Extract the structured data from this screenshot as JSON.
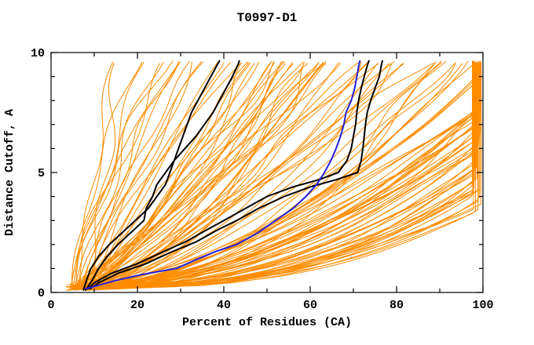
{
  "window": {
    "background": "#ffffff"
  },
  "chart_data": {
    "type": "line",
    "title": "T0997-D1",
    "xlabel": "Percent of Residues (CA)",
    "ylabel": "Distance Cutoff, A",
    "xlim": [
      0,
      100
    ],
    "ylim": [
      0,
      10
    ],
    "x_major_ticks": [
      0,
      20,
      40,
      60,
      80,
      100
    ],
    "x_minor_step": 10,
    "y_major_ticks": [
      0,
      5,
      10
    ],
    "y_minor_step": 1,
    "grid": false,
    "legend": "none",
    "colors": {
      "ensemble": "#ff8c00",
      "highlight": "#000000",
      "reference": "#2222dd",
      "frame": "#000000"
    },
    "series": [
      {
        "name": "black-model-left-1",
        "color": "#000000",
        "width": 2,
        "points_pct_cutoff": [
          [
            7.5,
            0.1
          ],
          [
            8.2,
            0.5
          ],
          [
            9.2,
            1.0
          ],
          [
            11,
            1.5
          ],
          [
            13.5,
            2.0
          ],
          [
            16.5,
            2.5
          ],
          [
            19.5,
            3.0
          ],
          [
            22.5,
            3.5
          ],
          [
            24.5,
            4.0
          ],
          [
            26.5,
            4.5
          ],
          [
            27.5,
            5.0
          ],
          [
            28.5,
            5.5
          ],
          [
            29.5,
            6.0
          ],
          [
            30.5,
            6.5
          ],
          [
            31.5,
            7.0
          ],
          [
            32.5,
            7.5
          ],
          [
            34,
            8.0
          ],
          [
            35.5,
            8.5
          ],
          [
            37,
            9.0
          ],
          [
            38.5,
            9.5
          ],
          [
            39,
            9.65
          ]
        ]
      },
      {
        "name": "black-model-left-2",
        "color": "#000000",
        "width": 2,
        "points_pct_cutoff": [
          [
            8,
            0.1
          ],
          [
            9.5,
            0.5
          ],
          [
            11,
            1.0
          ],
          [
            13,
            1.5
          ],
          [
            15.5,
            2.0
          ],
          [
            18.5,
            2.5
          ],
          [
            21.5,
            3.0
          ],
          [
            22,
            3.5
          ],
          [
            23.5,
            4.0
          ],
          [
            24.5,
            4.5
          ],
          [
            26.5,
            5.0
          ],
          [
            28.5,
            5.5
          ],
          [
            31,
            6.0
          ],
          [
            33.5,
            6.5
          ],
          [
            35.5,
            7.0
          ],
          [
            37.5,
            7.5
          ],
          [
            39,
            8.0
          ],
          [
            40.5,
            8.5
          ],
          [
            42,
            9.0
          ],
          [
            43.3,
            9.5
          ],
          [
            43.6,
            9.65
          ]
        ]
      },
      {
        "name": "black-model-right-1",
        "color": "#000000",
        "width": 2,
        "points_pct_cutoff": [
          [
            8.5,
            0.15
          ],
          [
            10,
            0.4
          ],
          [
            14,
            0.8
          ],
          [
            20,
            1.2
          ],
          [
            26,
            1.7
          ],
          [
            31,
            2.1
          ],
          [
            36,
            2.6
          ],
          [
            40,
            3.0
          ],
          [
            45,
            3.5
          ],
          [
            50,
            4.0
          ],
          [
            56,
            4.4
          ],
          [
            62,
            4.7
          ],
          [
            66.5,
            5.0
          ],
          [
            68.5,
            5.5
          ],
          [
            69.5,
            6.0
          ],
          [
            70,
            6.5
          ],
          [
            70.5,
            7.0
          ],
          [
            70.8,
            7.5
          ],
          [
            71.2,
            8.0
          ],
          [
            71.8,
            8.5
          ],
          [
            72.5,
            9.0
          ],
          [
            73.3,
            9.5
          ],
          [
            73.6,
            9.65
          ]
        ]
      },
      {
        "name": "black-model-right-2",
        "color": "#000000",
        "width": 2,
        "points_pct_cutoff": [
          [
            9,
            0.15
          ],
          [
            11,
            0.4
          ],
          [
            15.5,
            0.8
          ],
          [
            22,
            1.2
          ],
          [
            28,
            1.7
          ],
          [
            33.5,
            2.1
          ],
          [
            38.5,
            2.6
          ],
          [
            43,
            3.0
          ],
          [
            48,
            3.5
          ],
          [
            54,
            4.0
          ],
          [
            60,
            4.4
          ],
          [
            66,
            4.7
          ],
          [
            71,
            5.0
          ],
          [
            71.8,
            5.5
          ],
          [
            72.2,
            6.0
          ],
          [
            72.5,
            6.5
          ],
          [
            72.8,
            7.0
          ],
          [
            73.2,
            7.5
          ],
          [
            74,
            8.0
          ],
          [
            75,
            8.5
          ],
          [
            76,
            9.0
          ],
          [
            76.5,
            9.5
          ],
          [
            76.7,
            9.65
          ]
        ]
      },
      {
        "name": "blue-model",
        "color": "#2222dd",
        "width": 2,
        "points_pct_cutoff": [
          [
            8,
            0.15
          ],
          [
            11,
            0.3
          ],
          [
            15,
            0.5
          ],
          [
            21,
            0.75
          ],
          [
            29,
            1.0
          ],
          [
            34,
            1.4
          ],
          [
            38,
            1.7
          ],
          [
            43,
            2.0
          ],
          [
            48,
            2.5
          ],
          [
            52,
            3.0
          ],
          [
            56,
            3.5
          ],
          [
            59,
            4.0
          ],
          [
            61.5,
            4.5
          ],
          [
            63.3,
            5.0
          ],
          [
            64.8,
            5.5
          ],
          [
            66,
            6.0
          ],
          [
            67,
            6.5
          ],
          [
            67.8,
            7.0
          ],
          [
            68.3,
            7.5
          ],
          [
            69.5,
            8.0
          ],
          [
            70.3,
            8.5
          ],
          [
            70.8,
            9.0
          ],
          [
            71.3,
            9.5
          ],
          [
            71.5,
            9.65
          ]
        ]
      }
    ],
    "ensemble": {
      "name": "server-model-curves",
      "color": "#ff8c00",
      "width": 1,
      "seed": 1337,
      "start_pct": [
        3.5,
        11
      ],
      "start_cutoff": [
        0.08,
        0.33
      ],
      "top_cutoff": 9.65,
      "cap_pct": [
        97.5,
        99.7
      ],
      "groups": [
        {
          "name": "steep-left",
          "count": 18,
          "top_pct": [
            14,
            45
          ],
          "shape": [
            0.85,
            1.5
          ]
        },
        {
          "name": "middle-mass",
          "count": 42,
          "top_pct": [
            45,
            88
          ],
          "shape": [
            0.5,
            1.0
          ]
        },
        {
          "name": "wide-right",
          "count": 24,
          "top_pct": [
            88,
            120
          ],
          "shape": [
            0.4,
            0.65
          ]
        },
        {
          "name": "right-bundle",
          "count": 12,
          "top_pct": [
            112,
            126
          ],
          "shape": [
            0.5,
            0.6
          ]
        },
        {
          "name": "flat-bottom",
          "count": 26,
          "top_pct": [
            120,
            150
          ],
          "shape": [
            0.35,
            0.5
          ]
        }
      ]
    }
  }
}
